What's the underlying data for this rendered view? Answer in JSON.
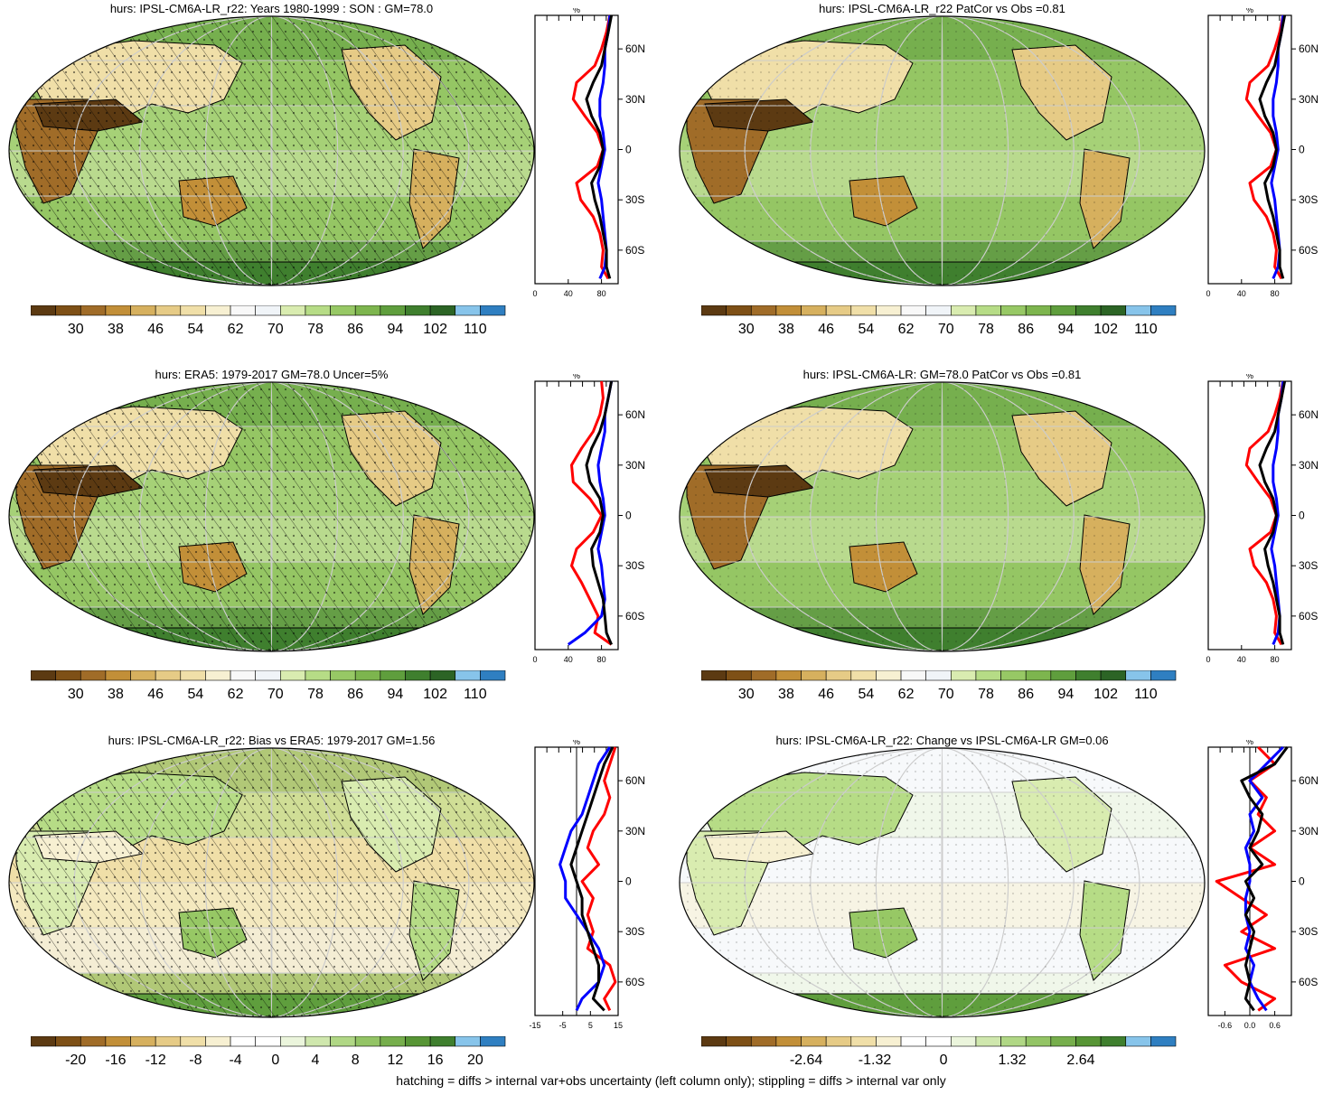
{
  "footer": "hatching = diffs > internal var+obs uncertainty (left column only); stippling = diffs > internal var only",
  "colors": {
    "palette": [
      "#5c3a12",
      "#7e5016",
      "#a06c28",
      "#c28f38",
      "#d6b05e",
      "#e6cb86",
      "#f0dfa8",
      "#f7f0d2",
      "#f8f8f8",
      "#f0f4f8",
      "#d9ecb0",
      "#b6dc86",
      "#97c865",
      "#7db54e",
      "#5f9e3d",
      "#3f7f2e",
      "#2c6425",
      "#87c4ea",
      "#2f7fc1"
    ],
    "diff_palette": [
      "#5c3a12",
      "#7e5016",
      "#a06c28",
      "#c28f38",
      "#d6b05e",
      "#e6cb86",
      "#f0dfa8",
      "#f7f0d2",
      "#ffffff",
      "#ffffff",
      "#ebf5dc",
      "#cfe7ad",
      "#b0d785",
      "#93c465",
      "#76ae4c",
      "#579535",
      "#3f7f2e",
      "#87c4ea",
      "#2f7fc1"
    ],
    "ocean_green": "#93c465",
    "land_dry": "#7e5016",
    "line_red": "#ff0000",
    "line_blue": "#0000ff",
    "line_black": "#000000"
  },
  "panels": [
    {
      "title": "hurs: IPSL-CM6A-LR_r22: Years 1980-1999 : SON : GM=78.0",
      "cbar_labels": [
        "30",
        "38",
        "46",
        "54",
        "62",
        "70",
        "78",
        "86",
        "94",
        "102",
        "110"
      ],
      "chart_data": {
        "type": "line",
        "title": "%",
        "xticks": [
          "0",
          "40",
          "80"
        ],
        "yticks": [
          "60N",
          "30N",
          "0",
          "30S",
          "60S"
        ],
        "xlim": [
          0,
          100
        ],
        "ylim": [
          -80,
          80
        ],
        "series": [
          {
            "color": "red",
            "y": [
              80,
              70,
              60,
              50,
              40,
              30,
              20,
              10,
              0,
              -10,
              -20,
              -30,
              -40,
              -50,
              -60,
              -70,
              -77
            ],
            "x": [
              90,
              86,
              80,
              72,
              50,
              46,
              60,
              75,
              82,
              75,
              50,
              55,
              70,
              78,
              82,
              80,
              88
            ]
          },
          {
            "color": "blue",
            "y": [
              80,
              70,
              60,
              50,
              40,
              30,
              20,
              10,
              0,
              -10,
              -20,
              -30,
              -40,
              -50,
              -60,
              -70,
              -77
            ],
            "x": [
              90,
              88,
              84,
              84,
              82,
              78,
              78,
              82,
              84,
              80,
              76,
              80,
              82,
              84,
              86,
              84,
              78
            ]
          },
          {
            "color": "black",
            "y": [
              80,
              70,
              60,
              50,
              40,
              30,
              20,
              10,
              0,
              -10,
              -20,
              -30,
              -40,
              -50,
              -60,
              -70,
              -77
            ],
            "x": [
              92,
              88,
              84,
              80,
              70,
              62,
              68,
              78,
              82,
              78,
              68,
              72,
              78,
              82,
              86,
              86,
              90
            ]
          }
        ]
      }
    },
    {
      "title": "hurs: IPSL-CM6A-LR_r22 PatCor vs Obs =0.81",
      "cbar_labels": [
        "30",
        "38",
        "46",
        "54",
        "62",
        "70",
        "78",
        "86",
        "94",
        "102",
        "110"
      ],
      "chart_data": {
        "type": "line",
        "title": "%",
        "xticks": [
          "0",
          "40",
          "80"
        ],
        "yticks": [
          "60N",
          "30N",
          "0",
          "30S",
          "60S"
        ],
        "xlim": [
          0,
          100
        ],
        "ylim": [
          -80,
          80
        ],
        "series": [
          {
            "color": "red",
            "y": [
              80,
              70,
              60,
              50,
              40,
              30,
              20,
              10,
              0,
              -10,
              -20,
              -30,
              -40,
              -50,
              -60,
              -70,
              -77
            ],
            "x": [
              90,
              86,
              80,
              72,
              50,
              46,
              60,
              75,
              82,
              75,
              50,
              55,
              70,
              78,
              82,
              80,
              88
            ]
          },
          {
            "color": "blue",
            "y": [
              80,
              70,
              60,
              50,
              40,
              30,
              20,
              10,
              0,
              -10,
              -20,
              -30,
              -40,
              -50,
              -60,
              -70,
              -77
            ],
            "x": [
              90,
              88,
              84,
              84,
              82,
              78,
              78,
              82,
              84,
              80,
              76,
              80,
              82,
              84,
              86,
              84,
              78
            ]
          },
          {
            "color": "black",
            "y": [
              80,
              70,
              60,
              50,
              40,
              30,
              20,
              10,
              0,
              -10,
              -20,
              -30,
              -40,
              -50,
              -60,
              -70,
              -77
            ],
            "x": [
              92,
              88,
              84,
              80,
              70,
              62,
              68,
              78,
              82,
              78,
              68,
              72,
              78,
              82,
              86,
              86,
              90
            ]
          }
        ]
      }
    },
    {
      "title": "hurs: ERA5: 1979-2017 GM=78.0 Uncer=5%",
      "cbar_labels": [
        "30",
        "38",
        "46",
        "54",
        "62",
        "70",
        "78",
        "86",
        "94",
        "102",
        "110"
      ],
      "chart_data": {
        "type": "line",
        "title": "%",
        "xticks": [
          "0",
          "40",
          "80"
        ],
        "yticks": [
          "60N",
          "30N",
          "0",
          "30S",
          "60S"
        ],
        "xlim": [
          0,
          100
        ],
        "ylim": [
          -80,
          80
        ],
        "series": [
          {
            "color": "red",
            "y": [
              80,
              70,
              60,
              50,
              40,
              30,
              20,
              10,
              0,
              -10,
              -20,
              -30,
              -40,
              -50,
              -60,
              -70,
              -77
            ],
            "x": [
              80,
              82,
              78,
              70,
              56,
              44,
              46,
              66,
              80,
              70,
              50,
              44,
              56,
              66,
              76,
              72,
              92
            ]
          },
          {
            "color": "blue",
            "y": [
              80,
              70,
              60,
              50,
              40,
              30,
              20,
              10,
              0,
              -10,
              -20,
              -30,
              -40,
              -50,
              -60,
              -70,
              -77
            ],
            "x": [
              92,
              88,
              84,
              84,
              80,
              76,
              78,
              82,
              84,
              80,
              76,
              80,
              82,
              84,
              80,
              60,
              40
            ]
          },
          {
            "color": "black",
            "y": [
              80,
              70,
              60,
              50,
              40,
              30,
              20,
              10,
              0,
              -10,
              -20,
              -30,
              -40,
              -50,
              -60,
              -70,
              -77
            ],
            "x": [
              92,
              88,
              84,
              78,
              68,
              62,
              66,
              78,
              82,
              78,
              68,
              70,
              76,
              82,
              84,
              86,
              92
            ]
          }
        ]
      }
    },
    {
      "title": "hurs: IPSL-CM6A-LR: GM=78.0 PatCor vs Obs =0.81",
      "cbar_labels": [
        "30",
        "38",
        "46",
        "54",
        "62",
        "70",
        "78",
        "86",
        "94",
        "102",
        "110"
      ],
      "chart_data": {
        "type": "line",
        "title": "%",
        "xticks": [
          "0",
          "40",
          "80"
        ],
        "yticks": [
          "60N",
          "30N",
          "0",
          "30S",
          "60S"
        ],
        "xlim": [
          0,
          100
        ],
        "ylim": [
          -80,
          80
        ],
        "series": [
          {
            "color": "red",
            "y": [
              80,
              70,
              60,
              50,
              40,
              30,
              20,
              10,
              0,
              -10,
              -20,
              -30,
              -40,
              -50,
              -60,
              -70,
              -77
            ],
            "x": [
              90,
              86,
              80,
              72,
              50,
              46,
              60,
              75,
              82,
              75,
              50,
              55,
              70,
              78,
              82,
              80,
              88
            ]
          },
          {
            "color": "blue",
            "y": [
              80,
              70,
              60,
              50,
              40,
              30,
              20,
              10,
              0,
              -10,
              -20,
              -30,
              -40,
              -50,
              -60,
              -70,
              -77
            ],
            "x": [
              90,
              88,
              84,
              84,
              82,
              78,
              78,
              82,
              84,
              80,
              76,
              80,
              82,
              84,
              86,
              84,
              78
            ]
          },
          {
            "color": "black",
            "y": [
              80,
              70,
              60,
              50,
              40,
              30,
              20,
              10,
              0,
              -10,
              -20,
              -30,
              -40,
              -50,
              -60,
              -70,
              -77
            ],
            "x": [
              92,
              88,
              84,
              80,
              70,
              62,
              68,
              78,
              82,
              78,
              68,
              72,
              78,
              82,
              86,
              86,
              90
            ]
          }
        ]
      }
    },
    {
      "title": "hurs: IPSL-CM6A-LR_r22: Bias vs ERA5: 1979-2017  GM=1.56",
      "cbar_labels": [
        "-20",
        "-16",
        "-12",
        "-8",
        "-4",
        "0",
        "4",
        "8",
        "12",
        "16",
        "20"
      ],
      "chart_data": {
        "type": "line",
        "title": "%",
        "xticks": [
          "-15",
          "-5",
          "5",
          "15"
        ],
        "yticks": [
          "60N",
          "30N",
          "0",
          "30S",
          "60S"
        ],
        "xlim": [
          -15,
          15
        ],
        "ylim": [
          -80,
          80
        ],
        "series": [
          {
            "color": "red",
            "y": [
              80,
              70,
              60,
              50,
              40,
              30,
              20,
              10,
              0,
              -10,
              -20,
              -30,
              -40,
              -50,
              -60,
              -70,
              -77
            ],
            "x": [
              14,
              12,
              10,
              12,
              10,
              6,
              4,
              8,
              2,
              6,
              4,
              6,
              4,
              12,
              14,
              10,
              12
            ]
          },
          {
            "color": "blue",
            "y": [
              80,
              70,
              60,
              50,
              40,
              30,
              20,
              10,
              0,
              -10,
              -20,
              -30,
              -40,
              -50,
              -60,
              -70,
              -77
            ],
            "x": [
              12,
              8,
              6,
              4,
              2,
              -2,
              -4,
              -6,
              -4,
              -4,
              0,
              4,
              8,
              10,
              8,
              2,
              0
            ]
          },
          {
            "color": "black",
            "y": [
              80,
              70,
              60,
              50,
              40,
              30,
              20,
              10,
              0,
              -10,
              -20,
              -30,
              -40,
              -50,
              -60,
              -70,
              -77
            ],
            "x": [
              13,
              10,
              8,
              6,
              4,
              2,
              0,
              -2,
              0,
              2,
              2,
              4,
              6,
              8,
              8,
              6,
              10
            ]
          }
        ]
      }
    },
    {
      "title": "hurs: IPSL-CM6A-LR_r22: Change vs IPSL-CM6A-LR GM=0.06",
      "cbar_labels": [
        "-2.64",
        "-1.32",
        "0",
        "1.32",
        "2.64"
      ],
      "chart_data": {
        "type": "line",
        "title": "%",
        "xticks": [
          "-0.6",
          "0.0",
          "0.6"
        ],
        "yticks": [
          "60N",
          "30N",
          "0",
          "30S",
          "60S"
        ],
        "xlim": [
          -1,
          1
        ],
        "ylim": [
          -80,
          80
        ],
        "series": [
          {
            "color": "red",
            "y": [
              80,
              70,
              60,
              50,
              40,
              30,
              20,
              10,
              0,
              -10,
              -20,
              -30,
              -40,
              -50,
              -60,
              -70,
              -77
            ],
            "x": [
              0.2,
              0.6,
              0.0,
              0.4,
              0.2,
              0.6,
              0.0,
              0.6,
              -0.8,
              -0.2,
              0.4,
              -0.2,
              0.6,
              -0.6,
              -0.2,
              0.6,
              0.2
            ]
          },
          {
            "color": "blue",
            "y": [
              80,
              70,
              60,
              50,
              40,
              30,
              20,
              10,
              0,
              -10,
              -20,
              -30,
              -40,
              -50,
              -60,
              -70,
              -77
            ],
            "x": [
              0.8,
              0.4,
              0.0,
              0.3,
              0.0,
              0.1,
              -0.1,
              0.0,
              0.0,
              -0.1,
              -0.1,
              0.0,
              -0.1,
              0.1,
              0.0,
              0.2,
              0.4
            ]
          },
          {
            "color": "black",
            "y": [
              80,
              70,
              60,
              50,
              40,
              30,
              20,
              10,
              0,
              -10,
              -20,
              -30,
              -40,
              -50,
              -60,
              -70,
              -77
            ],
            "x": [
              0.9,
              0.6,
              -0.2,
              0.0,
              0.3,
              0.2,
              0.0,
              0.3,
              -0.1,
              0.1,
              -0.1,
              0.1,
              0.0,
              -0.1,
              0.0,
              -0.1,
              0.1
            ]
          }
        ]
      }
    }
  ]
}
